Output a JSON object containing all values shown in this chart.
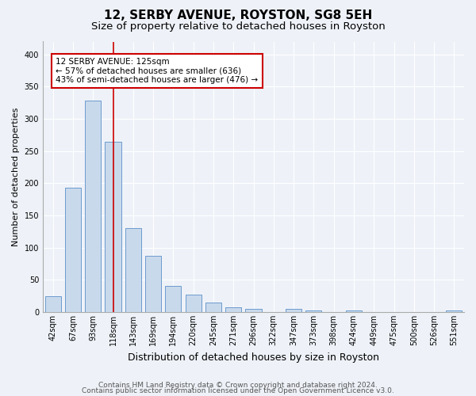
{
  "title": "12, SERBY AVENUE, ROYSTON, SG8 5EH",
  "subtitle": "Size of property relative to detached houses in Royston",
  "xlabel": "Distribution of detached houses by size in Royston",
  "ylabel": "Number of detached properties",
  "categories": [
    "42sqm",
    "67sqm",
    "93sqm",
    "118sqm",
    "143sqm",
    "169sqm",
    "194sqm",
    "220sqm",
    "245sqm",
    "271sqm",
    "296sqm",
    "322sqm",
    "347sqm",
    "373sqm",
    "398sqm",
    "424sqm",
    "449sqm",
    "475sqm",
    "500sqm",
    "526sqm",
    "551sqm"
  ],
  "values": [
    25,
    193,
    328,
    265,
    130,
    87,
    40,
    27,
    15,
    8,
    5,
    0,
    5,
    3,
    0,
    3,
    0,
    0,
    0,
    0,
    3
  ],
  "bar_color": "#c9d9ec",
  "bar_edge_color": "#5b8fc9",
  "marker_line_color": "#cc0000",
  "annotation_text": "12 SERBY AVENUE: 125sqm\n← 57% of detached houses are smaller (636)\n43% of semi-detached houses are larger (476) →",
  "annotation_box_color": "#cc0000",
  "annotation_bg": "#ffffff",
  "footer_line1": "Contains HM Land Registry data © Crown copyright and database right 2024.",
  "footer_line2": "Contains public sector information licensed under the Open Government Licence v3.0.",
  "ylim": [
    0,
    420
  ],
  "background_color": "#eef2f8",
  "grid_color": "#ffffff",
  "title_fontsize": 11,
  "subtitle_fontsize": 9.5,
  "xlabel_fontsize": 9,
  "ylabel_fontsize": 8,
  "tick_fontsize": 7,
  "footer_fontsize": 6.5,
  "annotation_fontsize": 7.5
}
